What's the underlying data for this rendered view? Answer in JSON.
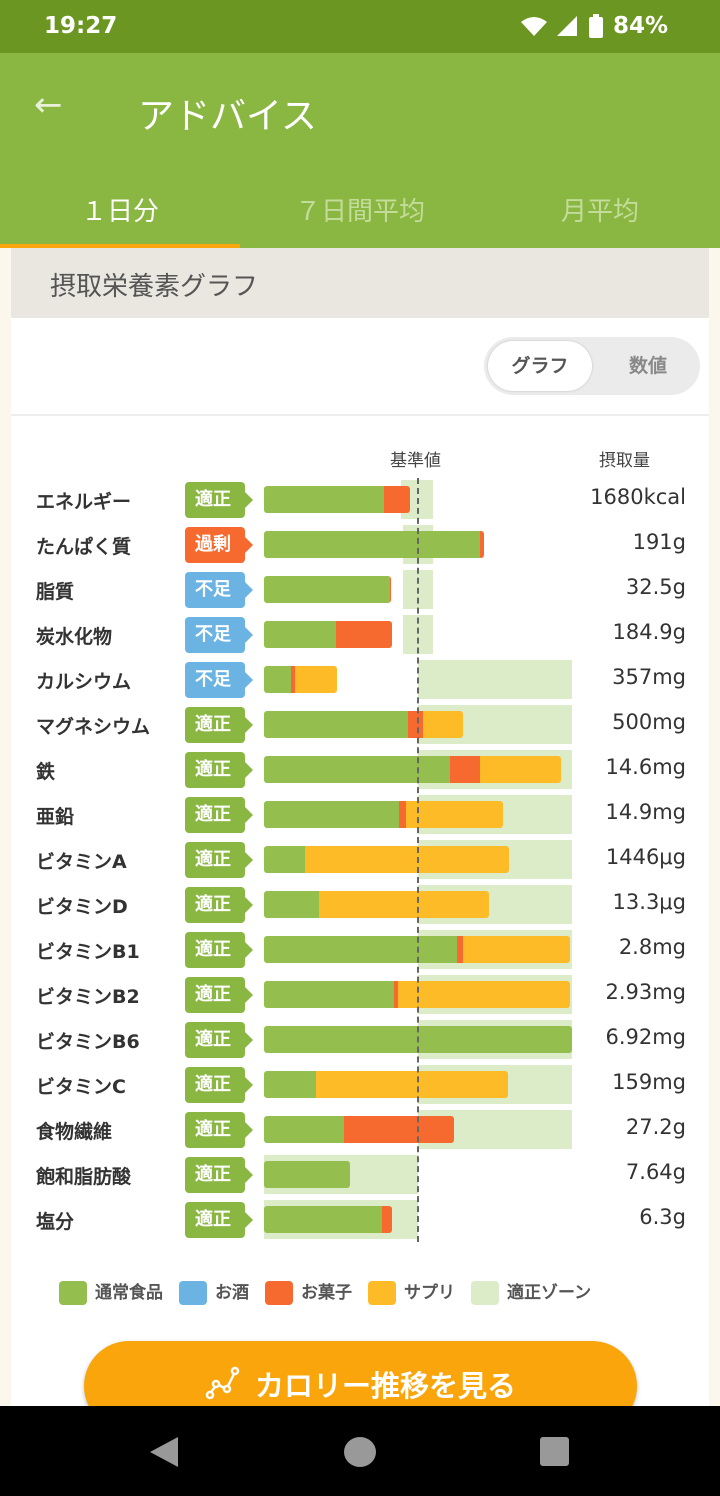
{
  "status": {
    "time": "19:27",
    "battery": "84%"
  },
  "appbar": {
    "title": "アドバイス",
    "back_icon": "arrow-left-icon"
  },
  "tabs": [
    "１日分",
    "７日間平均",
    "月平均"
  ],
  "section": {
    "title": "摂取栄養素グラフ"
  },
  "toggle": {
    "graph": "グラフ",
    "numeric": "数値"
  },
  "headers": {
    "reference": "基準値",
    "intake": "摂取量"
  },
  "colors": {
    "food": "#94be4e",
    "alcohol": "#6ab3e3",
    "snack": "#f76a2f",
    "supplement": "#fdbb28",
    "zone": "#dcebc8",
    "ok": "#8ab642",
    "over": "#f76a2f",
    "under": "#6ab3e3"
  },
  "badges": {
    "ok": "適正",
    "over": "過剰",
    "under": "不足"
  },
  "chart_data": {
    "type": "bar",
    "unit": "% of reference value",
    "reference": 100,
    "rows": [
      {
        "name": "エネルギー",
        "status": "ok",
        "value": "1680kcal",
        "food": 78,
        "snack": 17,
        "supplement": 0,
        "zone": [
          89,
          110
        ]
      },
      {
        "name": "たんぱく質",
        "status": "over",
        "value": "191g",
        "food": 140,
        "snack": 2.6,
        "supplement": 0,
        "zone": [
          90,
          110
        ]
      },
      {
        "name": "脂質",
        "status": "under",
        "value": "32.5g",
        "food": 82,
        "snack": 0.6,
        "supplement": 0,
        "zone": [
          90,
          110
        ]
      },
      {
        "name": "炭水化物",
        "status": "under",
        "value": "184.9g",
        "food": 47,
        "snack": 36,
        "supplement": 0,
        "zone": [
          90,
          110
        ]
      },
      {
        "name": "カルシウム",
        "status": "under",
        "value": "357mg",
        "food": 17.5,
        "snack": 2.6,
        "supplement": 27,
        "zone": [
          100,
          200
        ]
      },
      {
        "name": "マグネシウム",
        "status": "ok",
        "value": "500mg",
        "food": 93.5,
        "snack": 10,
        "supplement": 26,
        "zone": [
          100,
          200
        ]
      },
      {
        "name": "鉄",
        "status": "ok",
        "value": "14.6mg",
        "food": 121,
        "snack": 19.5,
        "supplement": 52.6,
        "zone": [
          100,
          200
        ]
      },
      {
        "name": "亜鉛",
        "status": "ok",
        "value": "14.9mg",
        "food": 87.7,
        "snack": 4.5,
        "supplement": 63,
        "zone": [
          100,
          200
        ]
      },
      {
        "name": "ビタミンA",
        "status": "ok",
        "value": "1446μg",
        "food": 26.6,
        "snack": 0,
        "supplement": 132.5,
        "zone": [
          100,
          200
        ]
      },
      {
        "name": "ビタミンD",
        "status": "ok",
        "value": "13.3μg",
        "food": 36,
        "snack": 0,
        "supplement": 110,
        "zone": [
          100,
          200
        ]
      },
      {
        "name": "ビタミンB1",
        "status": "ok",
        "value": "2.8mg",
        "food": 125,
        "snack": 4.5,
        "supplement": 69.5,
        "zone": [
          100,
          200
        ]
      },
      {
        "name": "ビタミンB2",
        "status": "ok",
        "value": "2.93mg",
        "food": 84.4,
        "snack": 2.6,
        "supplement": 111.7,
        "zone": [
          100,
          200
        ]
      },
      {
        "name": "ビタミンB6",
        "status": "ok",
        "value": "6.92mg",
        "food": 200,
        "snack": 0,
        "supplement": 0,
        "zone": [
          100,
          200
        ]
      },
      {
        "name": "ビタミンC",
        "status": "ok",
        "value": "159mg",
        "food": 33.8,
        "snack": 0,
        "supplement": 124.7,
        "zone": [
          100,
          200
        ]
      },
      {
        "name": "食物繊維",
        "status": "ok",
        "value": "27.2g",
        "food": 52,
        "snack": 71.4,
        "supplement": 0,
        "zone": [
          100,
          200
        ]
      },
      {
        "name": "飽和脂肪酸",
        "status": "ok",
        "value": "7.64g",
        "food": 55.8,
        "snack": 0,
        "supplement": 0,
        "zone": [
          0,
          100
        ]
      },
      {
        "name": "塩分",
        "status": "ok",
        "value": "6.3g",
        "food": 76.6,
        "snack": 6.5,
        "supplement": 0,
        "zone": [
          0,
          100
        ]
      }
    ]
  },
  "legend": [
    {
      "label": "通常食品",
      "key": "food"
    },
    {
      "label": "お酒",
      "key": "alcohol"
    },
    {
      "label": "お菓子",
      "key": "snack"
    },
    {
      "label": "サプリ",
      "key": "supplement"
    },
    {
      "label": "適正ゾーン",
      "key": "zone"
    }
  ],
  "cta": {
    "label": "カロリー推移を見る",
    "icon": "line-chart-icon"
  }
}
